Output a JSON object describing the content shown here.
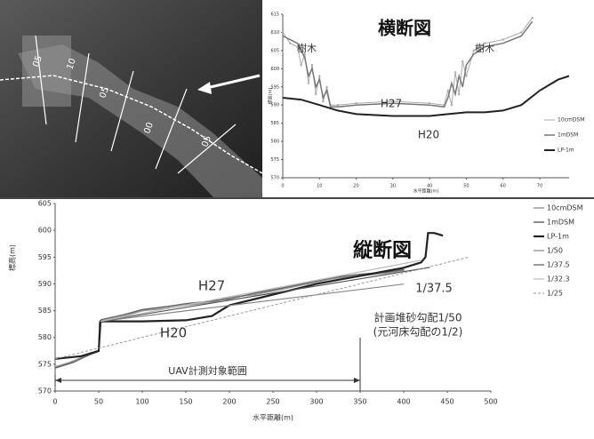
{
  "photo": {
    "labels": [
      "05",
      "10",
      "05",
      "00",
      "05"
    ]
  },
  "chart_data": [
    {
      "type": "line",
      "title": "横断図",
      "xlabel": "水平距離(m)",
      "ylabel": "標高(m)",
      "xlim": [
        0,
        78
      ],
      "xticks": [
        0,
        10,
        20,
        30,
        40,
        50,
        60,
        70
      ],
      "ylim": [
        570,
        615
      ],
      "yticks": [
        570,
        575,
        580,
        585,
        590,
        595,
        600,
        605,
        610,
        615
      ],
      "grid": false,
      "legend": "right",
      "annotations": [
        "樹木",
        "樹木",
        "H27",
        "H20"
      ],
      "series": [
        {
          "name": "10cmDSM",
          "color": "#aaaaaa",
          "marker": true,
          "x": [
            0,
            2,
            4,
            5,
            6,
            7,
            8,
            9,
            10,
            11,
            12,
            13,
            15,
            20,
            30,
            40,
            44,
            45,
            46,
            47,
            48,
            49,
            50,
            52,
            55,
            60,
            65,
            68
          ],
          "values": [
            610,
            607,
            606,
            601,
            604,
            596,
            601,
            593,
            598,
            591,
            595,
            590,
            590,
            590.5,
            591,
            590.5,
            590,
            594,
            590,
            599,
            593,
            602,
            598,
            605,
            607,
            608,
            610,
            614
          ]
        },
        {
          "name": "1mDSM",
          "color": "#777777",
          "marker": false,
          "x": [
            0,
            2,
            4,
            6,
            7,
            8,
            9,
            10,
            11,
            12,
            13,
            15,
            20,
            30,
            40,
            44,
            45,
            46,
            47,
            48,
            49,
            50,
            52,
            55,
            60,
            65,
            68
          ],
          "values": [
            609,
            608,
            607,
            603,
            598,
            600,
            595,
            597,
            592,
            594,
            589.5,
            589.5,
            590,
            590.5,
            590,
            589.5,
            592,
            596,
            593,
            598,
            595,
            601,
            604,
            606,
            607,
            609,
            613
          ]
        },
        {
          "name": "LP-1m",
          "color": "#222222",
          "marker": false,
          "x": [
            0,
            5,
            10,
            15,
            20,
            30,
            40,
            45,
            50,
            55,
            60,
            65,
            70,
            75,
            78
          ],
          "values": [
            592,
            591.5,
            590,
            588.5,
            587.5,
            587,
            587,
            587.5,
            588,
            588,
            588.5,
            590,
            594,
            597,
            598
          ]
        }
      ]
    },
    {
      "type": "line",
      "title": "縦断図",
      "xlabel": "水平距離(m)",
      "ylabel": "標高(m)",
      "xlim": [
        0,
        500
      ],
      "xticks": [
        0,
        50,
        100,
        150,
        200,
        250,
        300,
        350,
        400,
        450,
        500
      ],
      "ylim": [
        570,
        605
      ],
      "yticks": [
        570,
        575,
        580,
        585,
        590,
        595,
        600,
        605
      ],
      "grid": false,
      "legend": "right",
      "annotations": [
        "H27",
        "H20",
        "1/37.5",
        "計画堆砂勾配1/50",
        "(元河床勾配の1/2)"
      ],
      "range": {
        "label": "UAV計測対象範囲",
        "x": [
          0,
          350
        ]
      },
      "series": [
        {
          "name": "10cmDSM",
          "color": "#999999",
          "marker": true,
          "x": [
            0,
            20,
            40,
            50,
            51,
            53,
            80,
            100,
            130,
            150,
            180,
            200,
            230,
            260,
            290,
            320,
            350,
            380,
            400
          ],
          "values": [
            574.5,
            575.5,
            577,
            577.5,
            582.5,
            583,
            584,
            585,
            585.5,
            586,
            586.5,
            587.5,
            588,
            589,
            590,
            591,
            591.5,
            592,
            592.5
          ]
        },
        {
          "name": "1mDSM",
          "color": "#666666",
          "marker": false,
          "x": [
            0,
            20,
            40,
            50,
            51,
            53,
            80,
            100,
            130,
            150,
            180,
            200,
            230,
            260,
            290,
            320,
            350,
            380,
            400
          ],
          "values": [
            574.3,
            575.3,
            576.8,
            577.4,
            582.8,
            583.3,
            584.3,
            585.2,
            585.8,
            586.3,
            586.8,
            587.2,
            588.3,
            589.2,
            590.2,
            591.2,
            591.8,
            592.2,
            592.7
          ]
        },
        {
          "name": "LP-1m",
          "color": "#222222",
          "marker": false,
          "x": [
            0,
            30,
            50,
            52,
            60,
            100,
            150,
            180,
            200,
            250,
            300,
            350,
            400,
            420,
            425,
            428,
            435,
            445
          ],
          "values": [
            576,
            576.5,
            577.5,
            583,
            583,
            583,
            583.2,
            584,
            586,
            588,
            590,
            591.5,
            593,
            594,
            595,
            599.5,
            599.5,
            599
          ]
        },
        {
          "name": "1/50",
          "color": "#888888",
          "marker": false,
          "x": [
            52,
            400
          ],
          "values": [
            583,
            589.96
          ]
        },
        {
          "name": "1/37.5",
          "color": "#555555",
          "marker": false,
          "x": [
            52,
            430
          ],
          "values": [
            583,
            593.08
          ]
        },
        {
          "name": "1/32.3",
          "color": "#bbbbbb",
          "marker": false,
          "x": [
            52,
            420
          ],
          "values": [
            583,
            594.4
          ]
        },
        {
          "name": "1/25",
          "color": "#999999",
          "marker": false,
          "style": "dashed",
          "x": [
            0,
            475
          ],
          "values": [
            576,
            595
          ]
        }
      ]
    }
  ]
}
